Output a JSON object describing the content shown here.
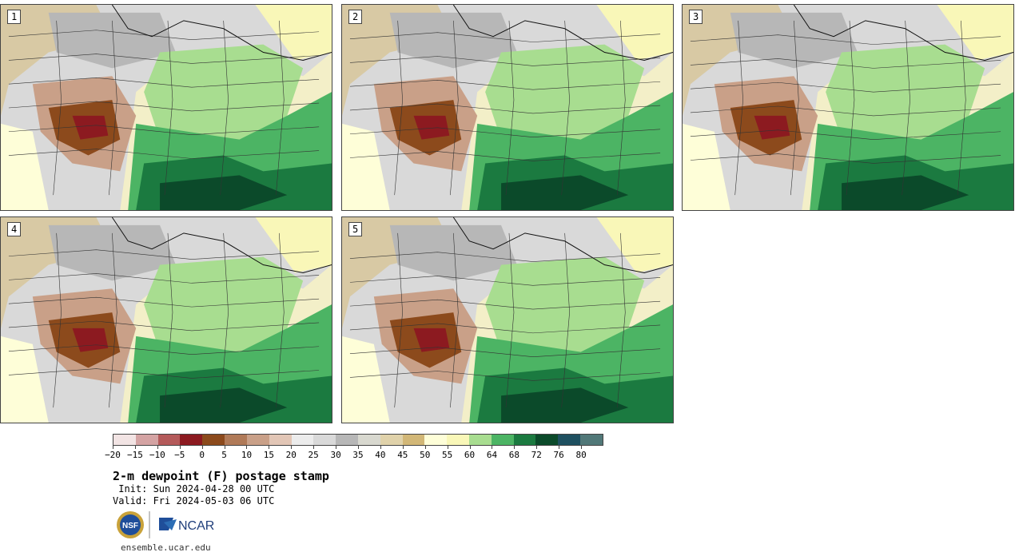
{
  "panels": [
    {
      "label": "1"
    },
    {
      "label": "2"
    },
    {
      "label": "3"
    },
    {
      "label": "4"
    },
    {
      "label": "5"
    }
  ],
  "colorbar": {
    "tick_labels": [
      "−20",
      "−15",
      "−10",
      "−5",
      "0",
      "5",
      "10",
      "15",
      "20",
      "25",
      "30",
      "35",
      "40",
      "45",
      "50",
      "55",
      "60",
      "64",
      "68",
      "72",
      "76",
      "80"
    ],
    "colors": [
      "#f2e4e4",
      "#d4a3a3",
      "#b45a5a",
      "#8c1a20",
      "#8c4a1c",
      "#b07a58",
      "#c9a088",
      "#e2c6b6",
      "#ececec",
      "#d9d9d9",
      "#b7b7b7",
      "#d8d8cf",
      "#e0d2aa",
      "#d2b777",
      "#fefed8",
      "#f9f7b8",
      "#a8dd90",
      "#4cb464",
      "#1b7a40",
      "#0b4a2a",
      "#1e5060",
      "#517878"
    ]
  },
  "title": "2-m dewpoint (F) postage stamp",
  "init": " Init: Sun 2024-04-28 00 UTC",
  "valid": "Valid: Fri 2024-05-03 06 UTC",
  "logos": {
    "nsf": "NSF",
    "ncar": "NCAR"
  },
  "footer": "ensemble.ucar.edu"
}
